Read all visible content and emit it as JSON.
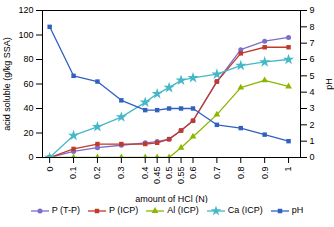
{
  "chart_data": {
    "type": "line",
    "xlabel": "amount of HCl (N)",
    "ylabel": "acid soluble (g/kg SSA)",
    "y2label": "pH",
    "x": [
      0,
      0.1,
      0.2,
      0.3,
      0.4,
      0.45,
      0.5,
      0.55,
      0.6,
      0.7,
      0.8,
      0.9,
      1.0
    ],
    "series": [
      {
        "name": "P (T-P)",
        "color": "#7b6ec8",
        "marker": "circle",
        "values": [
          0,
          5,
          8,
          10,
          12,
          13,
          15,
          22,
          30,
          62,
          88,
          95,
          98
        ]
      },
      {
        "name": "P (ICP)",
        "color": "#c0392b",
        "marker": "square",
        "values": [
          0,
          7,
          11,
          11,
          11,
          12,
          15,
          22,
          30,
          62,
          85,
          90,
          90
        ]
      },
      {
        "name": "Al (ICP)",
        "color": "#8db600",
        "marker": "triangle",
        "values": [
          0,
          0,
          0,
          0,
          0,
          0,
          0,
          8,
          17,
          35,
          57,
          63,
          58
        ]
      },
      {
        "name": "Ca (ICP)",
        "color": "#45b8c8",
        "marker": "star",
        "values": [
          0,
          18,
          25,
          33,
          45,
          52,
          57,
          63,
          65,
          68,
          75,
          78,
          80
        ]
      },
      {
        "name": "pH",
        "color": "#3060c0",
        "marker": "square",
        "axis": "y2",
        "values": [
          8.0,
          5.0,
          4.65,
          3.5,
          2.9,
          2.9,
          3.0,
          3.0,
          3.0,
          2.0,
          1.8,
          1.4,
          1.0
        ]
      }
    ],
    "xlim": [
      -0.03,
      1.05
    ],
    "xticks": [
      0,
      0.1,
      0.2,
      0.3,
      0.4,
      0.45,
      0.5,
      0.55,
      0.6,
      0.7,
      0.8,
      0.9,
      1.0
    ],
    "ylim": [
      0,
      120
    ],
    "yticks": [
      0,
      20,
      40,
      60,
      80,
      100,
      120
    ],
    "y2lim": [
      0,
      9
    ],
    "y2ticks": [
      0,
      1,
      2,
      3,
      4,
      5,
      6,
      7,
      8,
      9
    ],
    "grid": false,
    "legend": "bottom"
  }
}
